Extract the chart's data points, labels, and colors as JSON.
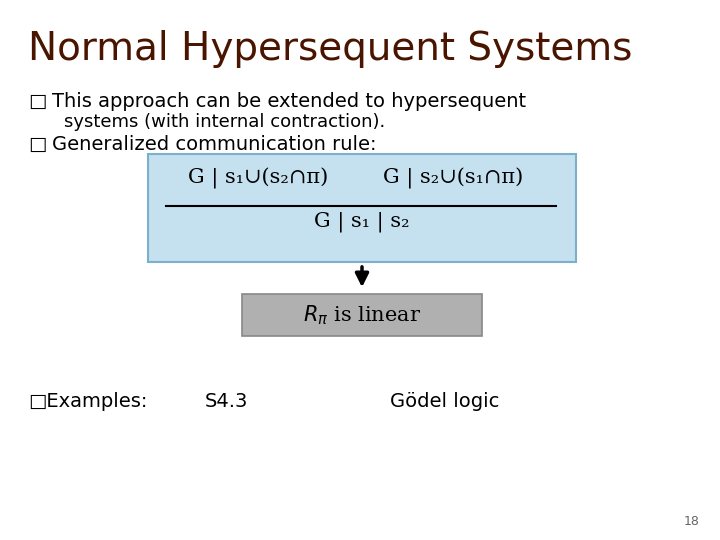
{
  "title": "Normal Hypersequent Systems",
  "title_color": "#4a1500",
  "title_fontsize": 28,
  "background_color": "#ffffff",
  "bullet1_line1": "This approach can be extended to hypersequent",
  "bullet1_line2": "systems (with internal contraction).",
  "bullet2": "Generalized communication rule:",
  "bullet_char": "□",
  "blue_box_color": "#c5e0ef",
  "blue_box_edge": "#7ab0cc",
  "numerator_left": "G | s₁∪(s₂∩π)",
  "numerator_right": "G | s₂∪(s₁∩π)",
  "denominator": "G | s₁ | s₂",
  "gray_box_color": "#b0b0b0",
  "gray_box_edge": "#888888",
  "rpi_text_pre": "R",
  "rpi_sub": "π",
  "rpi_text_post": " is linear",
  "examples_label": "□Examples:",
  "example1": "S4.3",
  "example2": "Gödel logic",
  "text_color": "#000000",
  "body_fontsize": 14,
  "math_fontsize": 15,
  "slide_number": "18"
}
